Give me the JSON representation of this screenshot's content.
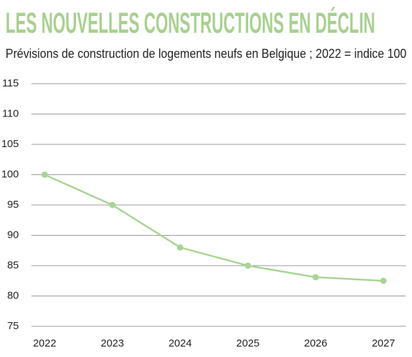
{
  "chart_data": {
    "type": "line",
    "title": "LES NOUVELLES CONSTRUCTIONS EN DÉCLIN",
    "subtitle": "Prévisions de construction de logements neufs en Belgique ; 2022 = indice 100",
    "categories": [
      "2022",
      "2023",
      "2024",
      "2025",
      "2026",
      "2027"
    ],
    "values": [
      100,
      95,
      88,
      85,
      83.1,
      82.5
    ],
    "color": "#a8d494",
    "ylim": [
      75,
      115
    ],
    "yticks": [
      75,
      80,
      85,
      90,
      95,
      100,
      105,
      110,
      115
    ],
    "grid": true
  }
}
